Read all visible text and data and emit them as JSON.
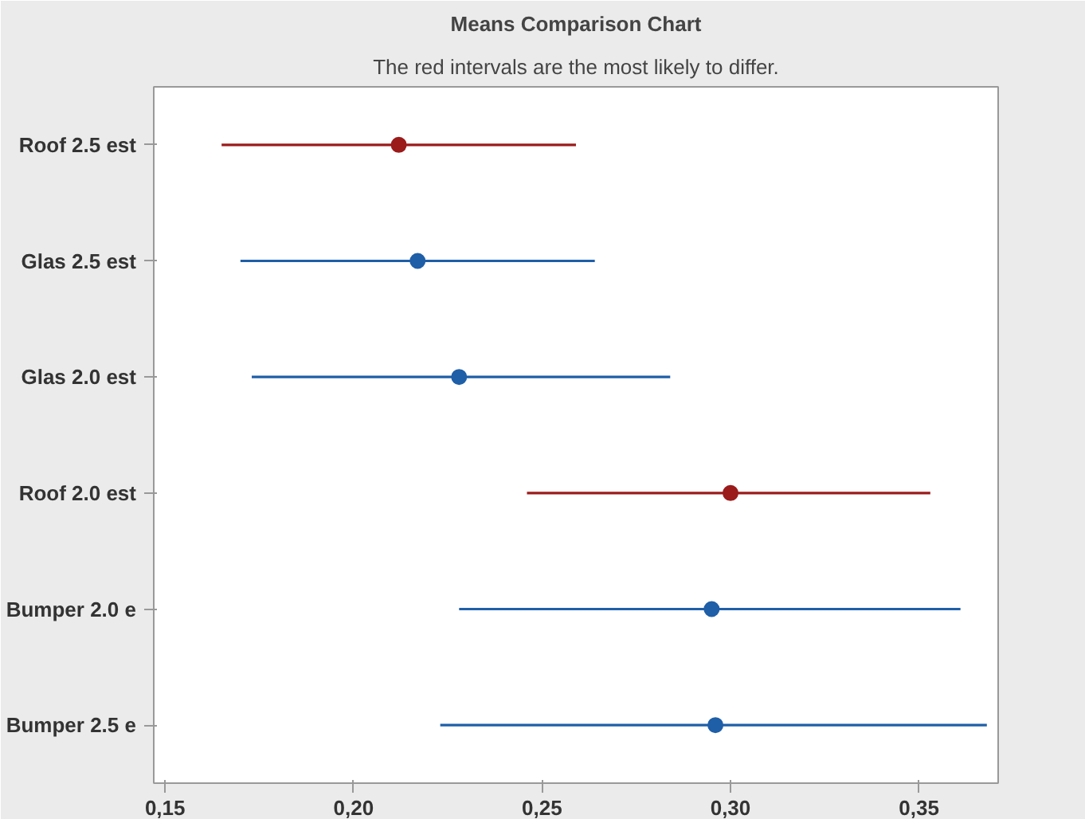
{
  "chart_data": {
    "type": "scatter",
    "orientation": "horizontal",
    "title": "Means Comparison Chart",
    "subtitle": "The red intervals are the most likely to differ.",
    "categories": [
      "Roof 2.5 est",
      "Glas 2.5 est",
      "Glas 2.0 est",
      "Roof 2.0 est",
      "Bumper 2.0 e",
      "Bumper 2.5 e"
    ],
    "values": [
      0.212,
      0.217,
      0.228,
      0.3,
      0.295,
      0.296
    ],
    "errors": [
      [
        0.165,
        0.259
      ],
      [
        0.17,
        0.264
      ],
      [
        0.173,
        0.284
      ],
      [
        0.246,
        0.353
      ],
      [
        0.228,
        0.361
      ],
      [
        0.223,
        0.368
      ]
    ],
    "colors": [
      "#9b1b1b",
      "#1f5fa8",
      "#1f5fa8",
      "#9b1b1b",
      "#1f5fa8",
      "#1f5fa8"
    ],
    "xlim": [
      0.147,
      0.371
    ],
    "xticks": [
      {
        "value": 0.15,
        "label": "0,15"
      },
      {
        "value": 0.2,
        "label": "0,20"
      },
      {
        "value": 0.25,
        "label": "0,25"
      },
      {
        "value": 0.3,
        "label": "0,30"
      },
      {
        "value": 0.35,
        "label": "0,35"
      }
    ],
    "marker": "circle",
    "grid": false
  }
}
